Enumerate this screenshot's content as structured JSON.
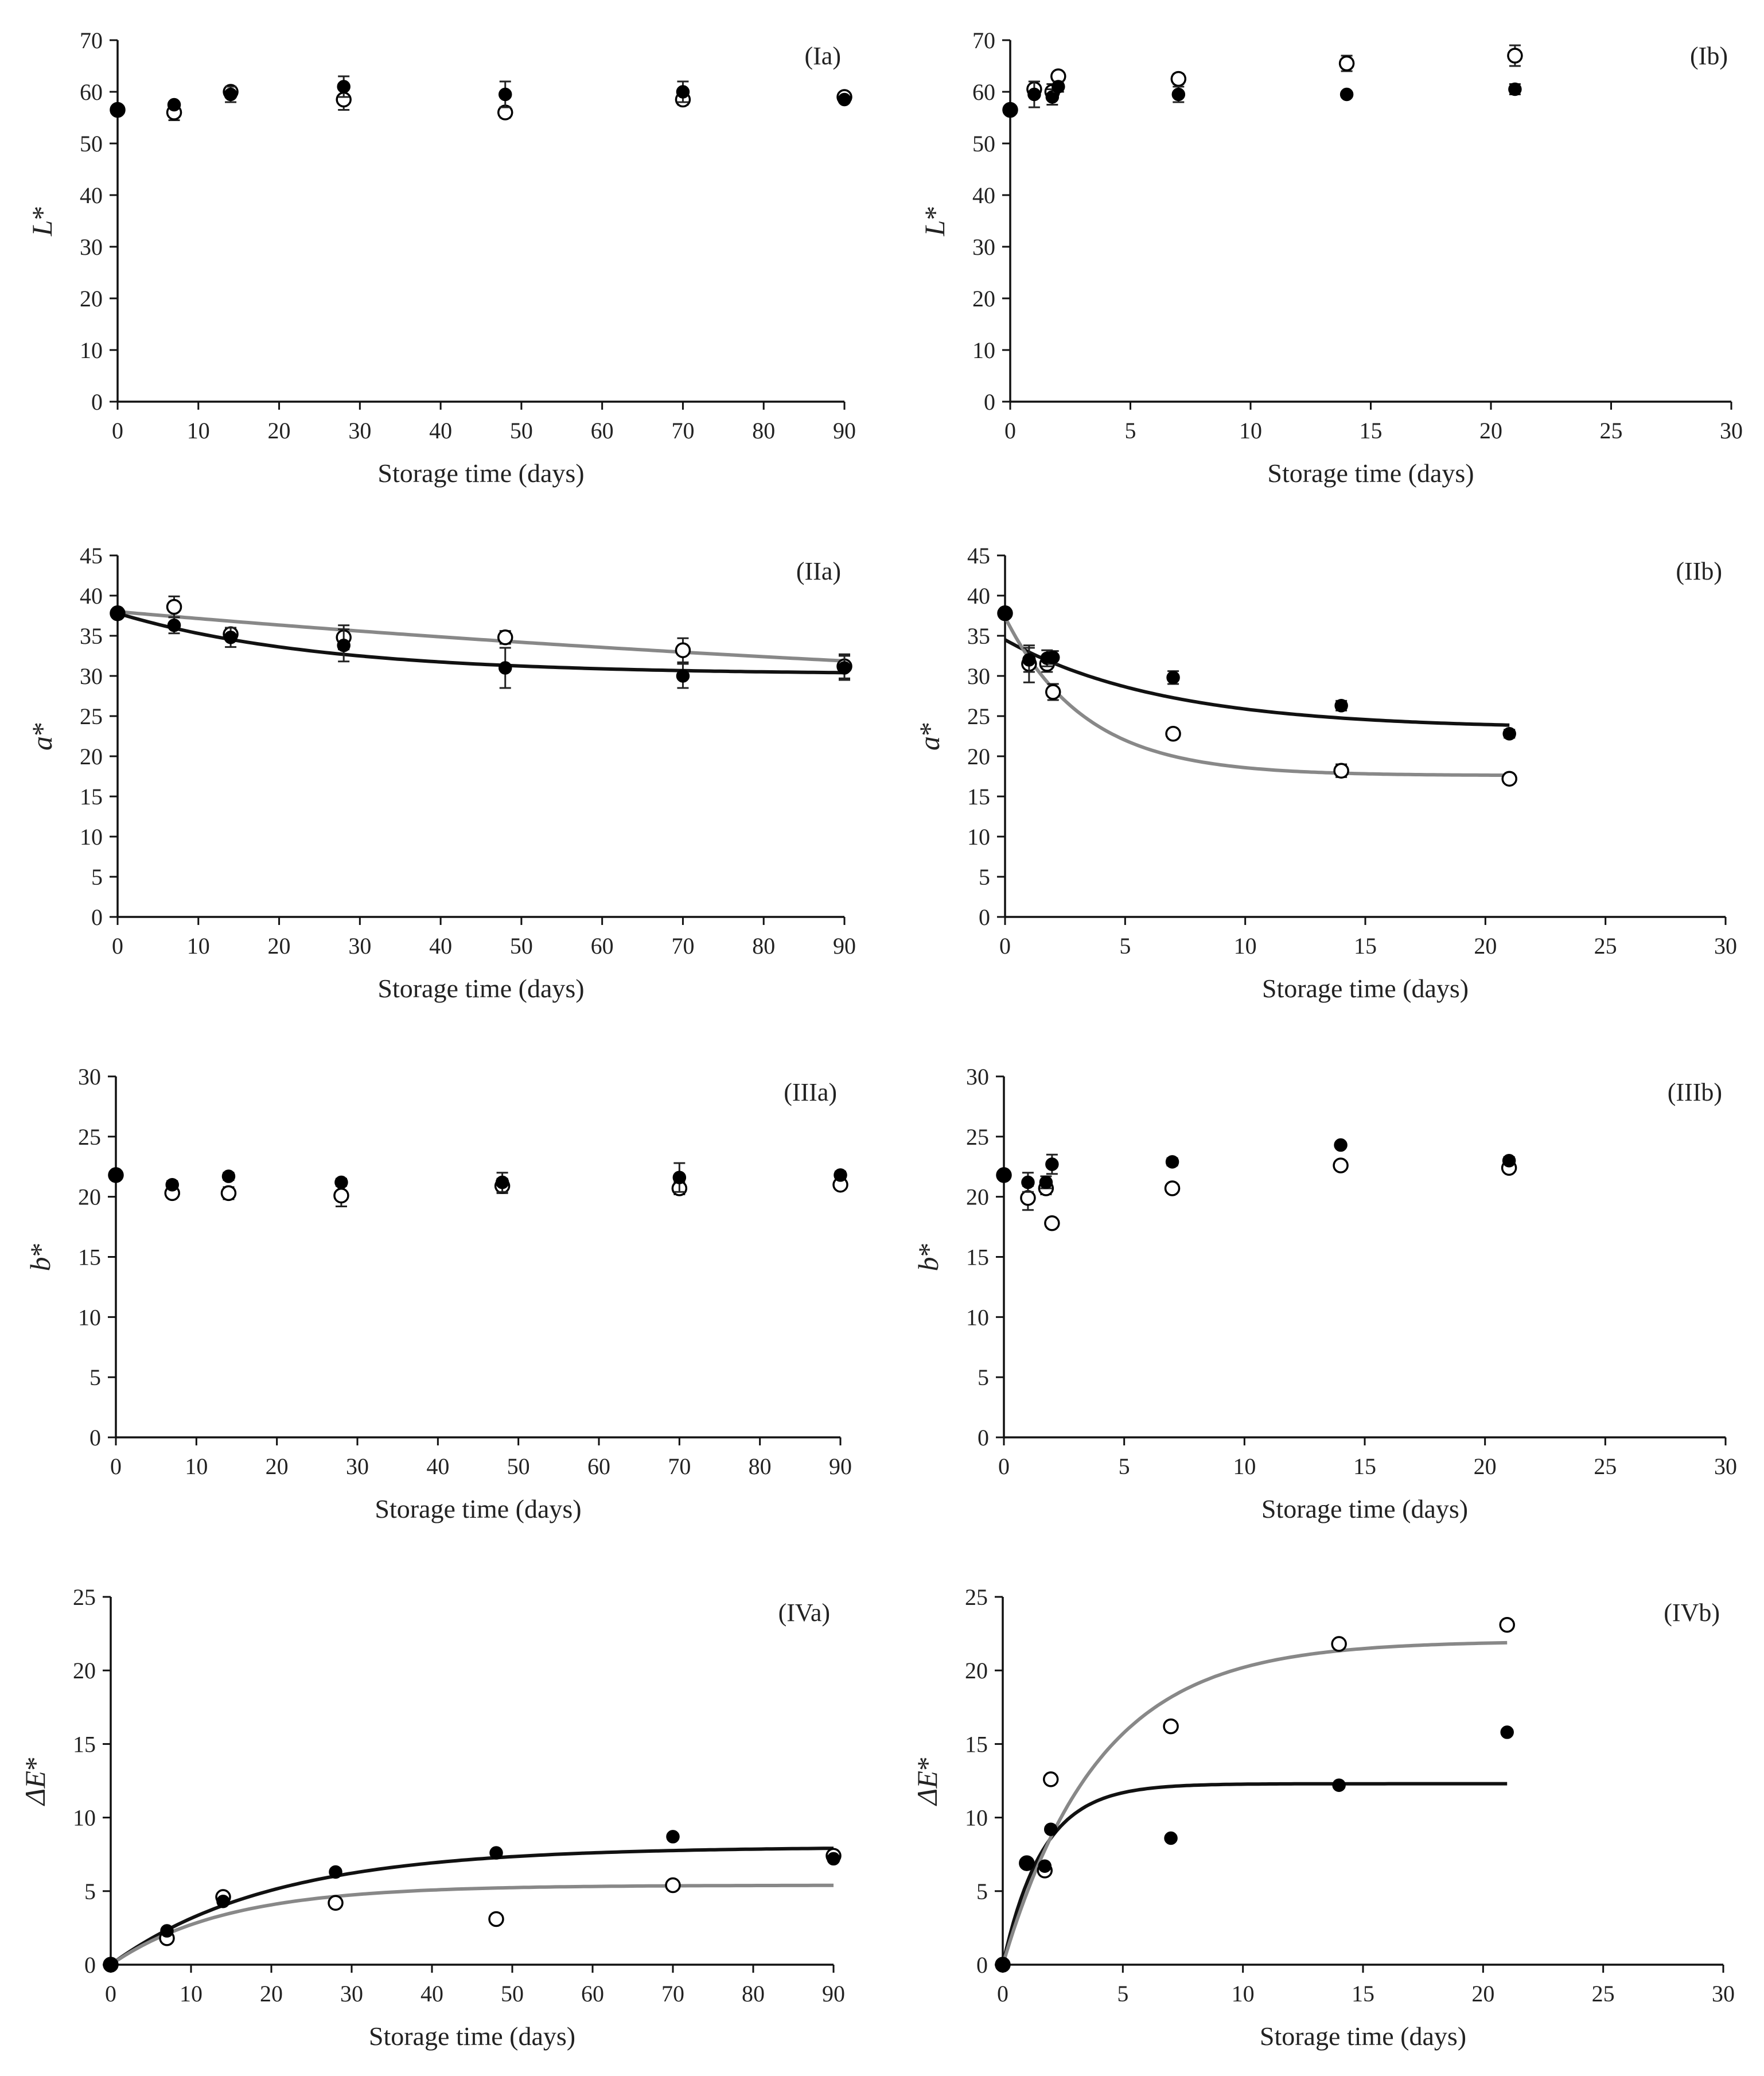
{
  "figure": {
    "colors": {
      "filled": "#000000",
      "open": "#ffffff",
      "fit_filled": "#111111",
      "fit_open": "#888888"
    }
  },
  "chart_data": [
    {
      "id": "Ia",
      "type": "scatter",
      "panel_label": "(Ia)",
      "title": "",
      "xlabel": "Storage time (days)",
      "ylabel": "L*",
      "ylabel_letter": "L",
      "ylabel_suffix": "*",
      "xlim": [
        0,
        90
      ],
      "ylim": [
        0,
        70
      ],
      "xticks": [
        0,
        10,
        20,
        30,
        40,
        50,
        60,
        70,
        80,
        90
      ],
      "yticks": [
        0,
        10,
        20,
        30,
        40,
        50,
        60,
        70
      ],
      "series": [
        {
          "name": "filled",
          "marker": "filled",
          "points": [
            {
              "x": 0,
              "y": 56.5,
              "err": 0
            },
            {
              "x": 7,
              "y": 57.5,
              "err": 0.5
            },
            {
              "x": 14,
              "y": 59.5,
              "err": 1.5
            },
            {
              "x": 28,
              "y": 61,
              "err": 2
            },
            {
              "x": 48,
              "y": 59.5,
              "err": 2.5
            },
            {
              "x": 70,
              "y": 60,
              "err": 2
            },
            {
              "x": 90,
              "y": 58.5,
              "err": 0.5
            }
          ]
        },
        {
          "name": "open",
          "marker": "open",
          "points": [
            {
              "x": 0,
              "y": 56.5,
              "err": 0
            },
            {
              "x": 7,
              "y": 56,
              "err": 1.5
            },
            {
              "x": 14,
              "y": 60,
              "err": 1
            },
            {
              "x": 28,
              "y": 58.5,
              "err": 2
            },
            {
              "x": 48,
              "y": 56,
              "err": 1
            },
            {
              "x": 70,
              "y": 58.5,
              "err": 1
            },
            {
              "x": 90,
              "y": 59,
              "err": 0.5
            }
          ]
        }
      ]
    },
    {
      "id": "Ib",
      "type": "scatter",
      "panel_label": "(Ib)",
      "title": "",
      "xlabel": "Storage time (days)",
      "ylabel": "L*",
      "ylabel_letter": "L",
      "ylabel_suffix": "*",
      "xlim": [
        0,
        30
      ],
      "ylim": [
        0,
        70
      ],
      "xticks": [
        0,
        5,
        10,
        15,
        20,
        25,
        30
      ],
      "yticks": [
        0,
        10,
        20,
        30,
        40,
        50,
        60,
        70
      ],
      "series": [
        {
          "name": "filled",
          "marker": "filled",
          "points": [
            {
              "x": 0,
              "y": 56.5,
              "err": 0
            },
            {
              "x": 1,
              "y": 59.5,
              "err": 2.5
            },
            {
              "x": 1.75,
              "y": 59,
              "err": 1.5
            },
            {
              "x": 2,
              "y": 61,
              "err": 1
            },
            {
              "x": 7,
              "y": 59.5,
              "err": 1.5
            },
            {
              "x": 14,
              "y": 59.5,
              "err": 0.5
            },
            {
              "x": 21,
              "y": 60.5,
              "err": 1
            }
          ]
        },
        {
          "name": "open",
          "marker": "open",
          "points": [
            {
              "x": 0,
              "y": 56.5,
              "err": 0
            },
            {
              "x": 1,
              "y": 60.5,
              "err": 1.5
            },
            {
              "x": 1.75,
              "y": 60,
              "err": 1.5
            },
            {
              "x": 2,
              "y": 63,
              "err": 0.5
            },
            {
              "x": 7,
              "y": 62.5,
              "err": 1
            },
            {
              "x": 14,
              "y": 65.5,
              "err": 1.5
            },
            {
              "x": 21,
              "y": 67,
              "err": 2
            }
          ]
        }
      ]
    },
    {
      "id": "IIa",
      "type": "scatter",
      "panel_label": "(IIa)",
      "title": "",
      "xlabel": "Storage time (days)",
      "ylabel": "a*",
      "ylabel_letter": "a",
      "ylabel_suffix": "*",
      "xlim": [
        0,
        90
      ],
      "ylim": [
        0,
        45
      ],
      "xticks": [
        0,
        10,
        20,
        30,
        40,
        50,
        60,
        70,
        80,
        90
      ],
      "yticks": [
        0,
        5,
        10,
        15,
        20,
        25,
        30,
        35,
        40,
        45
      ],
      "series": [
        {
          "name": "filled",
          "marker": "filled",
          "points": [
            {
              "x": 0,
              "y": 37.8,
              "err": 0
            },
            {
              "x": 7,
              "y": 36.3,
              "err": 1
            },
            {
              "x": 14,
              "y": 34.8,
              "err": 1.2
            },
            {
              "x": 28,
              "y": 33.8,
              "err": 2
            },
            {
              "x": 48,
              "y": 31,
              "err": 2.5
            },
            {
              "x": 70,
              "y": 30,
              "err": 1.5
            },
            {
              "x": 90,
              "y": 31,
              "err": 1.5
            }
          ],
          "fit": {
            "model": "exponential",
            "a": 30.2,
            "b": 7.6,
            "k": 0.04,
            "x_end": 90
          }
        },
        {
          "name": "open",
          "marker": "open",
          "points": [
            {
              "x": 0,
              "y": 37.8,
              "err": 0
            },
            {
              "x": 7,
              "y": 38.6,
              "err": 1.3
            },
            {
              "x": 14,
              "y": 35.2,
              "err": 0.6
            },
            {
              "x": 28,
              "y": 34.8,
              "err": 1.5
            },
            {
              "x": 48,
              "y": 34.8,
              "err": 0.8
            },
            {
              "x": 70,
              "y": 33.2,
              "err": 1.5
            },
            {
              "x": 90,
              "y": 31.2,
              "err": 1.5
            }
          ],
          "fit": {
            "model": "exponential",
            "a": 23.3,
            "b": 14.7,
            "k": 0.006,
            "x_end": 90
          }
        }
      ]
    },
    {
      "id": "IIb",
      "type": "scatter",
      "panel_label": "(IIb)",
      "title": "",
      "xlabel": "Storage time (days)",
      "ylabel": "a*",
      "ylabel_letter": "a",
      "ylabel_suffix": "*",
      "xlim": [
        0,
        30
      ],
      "ylim": [
        0,
        45
      ],
      "xticks": [
        0,
        5,
        10,
        15,
        20,
        25,
        30
      ],
      "yticks": [
        0,
        5,
        10,
        15,
        20,
        25,
        30,
        35,
        40,
        45
      ],
      "series": [
        {
          "name": "filled",
          "marker": "filled",
          "points": [
            {
              "x": 0,
              "y": 37.8,
              "err": 0
            },
            {
              "x": 1,
              "y": 32,
              "err": 1.5
            },
            {
              "x": 1.75,
              "y": 32.2,
              "err": 1
            },
            {
              "x": 2,
              "y": 32.3,
              "err": 0.8
            },
            {
              "x": 7,
              "y": 29.8,
              "err": 0.8
            },
            {
              "x": 14,
              "y": 26.3,
              "err": 0.6
            },
            {
              "x": 21,
              "y": 22.8,
              "err": 0.5
            }
          ],
          "fit": {
            "model": "exponential",
            "a": 23.4,
            "b": 11.1,
            "k": 0.15,
            "x_end": 21
          }
        },
        {
          "name": "open",
          "marker": "open",
          "points": [
            {
              "x": 0,
              "y": 37.8,
              "err": 0
            },
            {
              "x": 1,
              "y": 31.5,
              "err": 2.3
            },
            {
              "x": 1.75,
              "y": 31.5,
              "err": 1
            },
            {
              "x": 2,
              "y": 28,
              "err": 1
            },
            {
              "x": 7,
              "y": 22.8,
              "err": 0.6
            },
            {
              "x": 14,
              "y": 18.2,
              "err": 0.8
            },
            {
              "x": 21,
              "y": 17.2,
              "err": 0.5
            }
          ],
          "fit": {
            "model": "exponential",
            "a": 17.6,
            "b": 19.7,
            "k": 0.3,
            "x_end": 21
          }
        }
      ]
    },
    {
      "id": "IIIa",
      "type": "scatter",
      "panel_label": "(IIIa)",
      "title": "",
      "xlabel": "Storage time (days)",
      "ylabel": "b*",
      "ylabel_letter": "b",
      "ylabel_suffix": "*",
      "xlim": [
        0,
        90
      ],
      "ylim": [
        0,
        30
      ],
      "xticks": [
        0,
        10,
        20,
        30,
        40,
        50,
        60,
        70,
        80,
        90
      ],
      "yticks": [
        0,
        5,
        10,
        15,
        20,
        25,
        30
      ],
      "series": [
        {
          "name": "filled",
          "marker": "filled",
          "points": [
            {
              "x": 0,
              "y": 21.8,
              "err": 0
            },
            {
              "x": 7,
              "y": 21,
              "err": 0.3
            },
            {
              "x": 14,
              "y": 21.7,
              "err": 0.3
            },
            {
              "x": 28,
              "y": 21.2,
              "err": 0.3
            },
            {
              "x": 48,
              "y": 21.2,
              "err": 0.8
            },
            {
              "x": 70,
              "y": 21.6,
              "err": 1.2
            },
            {
              "x": 90,
              "y": 21.8,
              "err": 0.3
            }
          ]
        },
        {
          "name": "open",
          "marker": "open",
          "points": [
            {
              "x": 0,
              "y": 21.8,
              "err": 0
            },
            {
              "x": 7,
              "y": 20.3,
              "err": 0.3
            },
            {
              "x": 14,
              "y": 20.3,
              "err": 0.5
            },
            {
              "x": 28,
              "y": 20.1,
              "err": 0.9
            },
            {
              "x": 48,
              "y": 20.9,
              "err": 0.6
            },
            {
              "x": 70,
              "y": 20.7,
              "err": 0.5
            },
            {
              "x": 90,
              "y": 21,
              "err": 0.3
            }
          ]
        }
      ]
    },
    {
      "id": "IIIb",
      "type": "scatter",
      "panel_label": "(IIIb)",
      "title": "",
      "xlabel": "Storage time (days)",
      "ylabel": "b*",
      "ylabel_letter": "b",
      "ylabel_suffix": "*",
      "xlim": [
        0,
        30
      ],
      "ylim": [
        0,
        30
      ],
      "xticks": [
        0,
        5,
        10,
        15,
        20,
        25,
        30
      ],
      "yticks": [
        0,
        5,
        10,
        15,
        20,
        25,
        30
      ],
      "series": [
        {
          "name": "filled",
          "marker": "filled",
          "points": [
            {
              "x": 0,
              "y": 21.8,
              "err": 0
            },
            {
              "x": 1,
              "y": 21.2,
              "err": 0.8
            },
            {
              "x": 1.75,
              "y": 21.2,
              "err": 0.5
            },
            {
              "x": 2,
              "y": 22.7,
              "err": 0.8
            },
            {
              "x": 7,
              "y": 22.9,
              "err": 0.3
            },
            {
              "x": 14,
              "y": 24.3,
              "err": 0.2
            },
            {
              "x": 21,
              "y": 23,
              "err": 0.3
            }
          ]
        },
        {
          "name": "open",
          "marker": "open",
          "points": [
            {
              "x": 0,
              "y": 21.8,
              "err": 0
            },
            {
              "x": 1,
              "y": 19.9,
              "err": 1
            },
            {
              "x": 1.75,
              "y": 20.7,
              "err": 0.5
            },
            {
              "x": 2,
              "y": 17.8,
              "err": 0.3
            },
            {
              "x": 7,
              "y": 20.7,
              "err": 0.3
            },
            {
              "x": 14,
              "y": 22.6,
              "err": 0.3
            },
            {
              "x": 21,
              "y": 22.4,
              "err": 0.3
            }
          ]
        }
      ]
    },
    {
      "id": "IVa",
      "type": "scatter",
      "panel_label": "(IVa)",
      "title": "",
      "xlabel": "Storage time (days)",
      "ylabel": "ΔE*",
      "ylabel_letter": "ΔE",
      "ylabel_suffix": "*",
      "xlim": [
        0,
        90
      ],
      "ylim": [
        0,
        25
      ],
      "xticks": [
        0,
        10,
        20,
        30,
        40,
        50,
        60,
        70,
        80,
        90
      ],
      "yticks": [
        0,
        5,
        10,
        15,
        20,
        25
      ],
      "series": [
        {
          "name": "filled",
          "marker": "filled",
          "points": [
            {
              "x": 0,
              "y": 0,
              "err": 0
            },
            {
              "x": 7,
              "y": 2.3,
              "err": 0
            },
            {
              "x": 14,
              "y": 4.3,
              "err": 0
            },
            {
              "x": 28,
              "y": 6.3,
              "err": 0
            },
            {
              "x": 48,
              "y": 7.6,
              "err": 0
            },
            {
              "x": 70,
              "y": 8.7,
              "err": 0
            },
            {
              "x": 90,
              "y": 7.2,
              "err": 0
            }
          ],
          "fit": {
            "model": "exponential",
            "a": 8.0,
            "b": -8.0,
            "k": 0.05,
            "x_end": 90
          }
        },
        {
          "name": "open",
          "marker": "open",
          "points": [
            {
              "x": 0,
              "y": 0,
              "err": 0
            },
            {
              "x": 7,
              "y": 1.8,
              "err": 0
            },
            {
              "x": 14,
              "y": 4.6,
              "err": 0
            },
            {
              "x": 28,
              "y": 4.2,
              "err": 0
            },
            {
              "x": 48,
              "y": 3.1,
              "err": 0
            },
            {
              "x": 70,
              "y": 5.4,
              "err": 0
            },
            {
              "x": 90,
              "y": 7.4,
              "err": 0
            }
          ],
          "fit": {
            "model": "exponential",
            "a": 5.4,
            "b": -5.4,
            "k": 0.07,
            "x_end": 90
          }
        }
      ]
    },
    {
      "id": "IVb",
      "type": "scatter",
      "panel_label": "(IVb)",
      "title": "",
      "xlabel": "Storage time (days)",
      "ylabel": "ΔE*",
      "ylabel_letter": "ΔE",
      "ylabel_suffix": "*",
      "xlim": [
        0,
        30
      ],
      "ylim": [
        0,
        25
      ],
      "xticks": [
        0,
        5,
        10,
        15,
        20,
        25,
        30
      ],
      "yticks": [
        0,
        5,
        10,
        15,
        20,
        25
      ],
      "series": [
        {
          "name": "filled",
          "marker": "filled",
          "points": [
            {
              "x": 0,
              "y": 0,
              "err": 0
            },
            {
              "x": 1,
              "y": 6.9,
              "err": 0
            },
            {
              "x": 1.75,
              "y": 6.7,
              "err": 0
            },
            {
              "x": 2,
              "y": 9.2,
              "err": 0
            },
            {
              "x": 7,
              "y": 8.6,
              "err": 0
            },
            {
              "x": 14,
              "y": 12.2,
              "err": 0
            },
            {
              "x": 21,
              "y": 15.8,
              "err": 0
            }
          ],
          "fit": {
            "model": "exponential",
            "a": 12.3,
            "b": -12.3,
            "k": 0.6,
            "x_end": 21
          }
        },
        {
          "name": "open",
          "marker": "open",
          "points": [
            {
              "x": 0,
              "y": 0,
              "err": 0
            },
            {
              "x": 1,
              "y": 6.9,
              "err": 0
            },
            {
              "x": 1.75,
              "y": 6.4,
              "err": 0
            },
            {
              "x": 2,
              "y": 12.6,
              "err": 0
            },
            {
              "x": 7,
              "y": 16.2,
              "err": 0
            },
            {
              "x": 14,
              "y": 21.8,
              "err": 0
            },
            {
              "x": 21,
              "y": 23.1,
              "err": 0
            }
          ],
          "fit": {
            "model": "exponential",
            "a": 22.0,
            "b": -22.0,
            "k": 0.25,
            "x_end": 21
          }
        }
      ]
    }
  ]
}
